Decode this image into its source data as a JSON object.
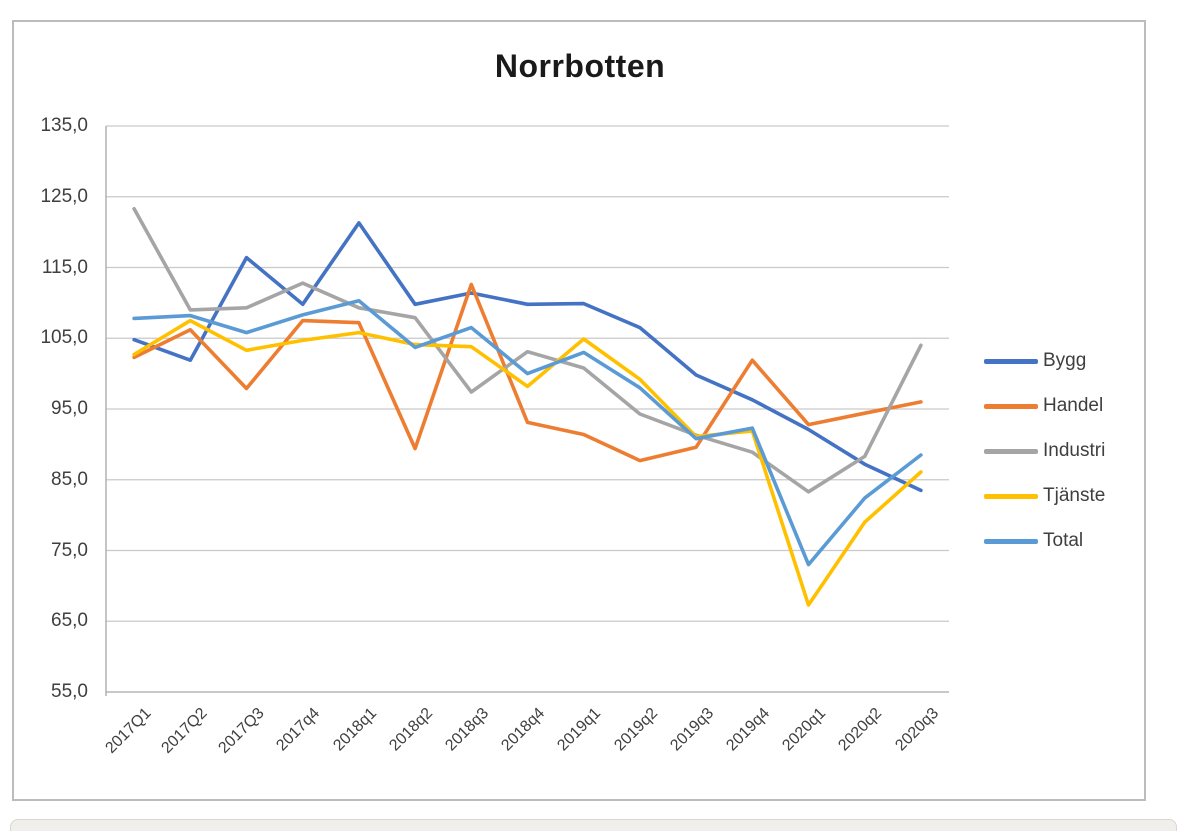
{
  "chart": {
    "title": "Norrbotten"
  },
  "chart_data": {
    "type": "line",
    "title": "Norrbotten",
    "xlabel": "",
    "ylabel": "",
    "ylim": [
      55,
      135
    ],
    "ytick_step": 10,
    "grid": true,
    "legend_position": "right",
    "y_tick_labels": [
      "135,0",
      "125,0",
      "115,0",
      "105,0",
      "95,0",
      "85,0",
      "75,0",
      "65,0",
      "55,0"
    ],
    "y_tick_values": [
      135,
      125,
      115,
      105,
      95,
      85,
      75,
      65,
      55
    ],
    "categories": [
      "2017Q1",
      "2017Q2",
      "2017Q3",
      "2017q4",
      "2018q1",
      "2018q2",
      "2018q3",
      "2018q4",
      "2019q1",
      "2019q2",
      "2019q3",
      "2019q4",
      "2020q1",
      "2020q2",
      "2020q3"
    ],
    "series": [
      {
        "name": "Bygg",
        "color": "#4472C4",
        "values": [
          104.8,
          101.9,
          116.4,
          109.8,
          121.3,
          109.8,
          111.4,
          109.8,
          109.9,
          106.5,
          99.8,
          96.3,
          92.1,
          87.2,
          83.5
        ]
      },
      {
        "name": "Handel",
        "color": "#ED7D31",
        "values": [
          102.3,
          106.2,
          97.9,
          107.5,
          107.2,
          89.4,
          112.6,
          93.1,
          91.4,
          87.7,
          89.6,
          101.9,
          92.8,
          94.4,
          96.0
        ]
      },
      {
        "name": "Industri",
        "color": "#A5A5A5",
        "values": [
          123.3,
          109.0,
          109.3,
          112.8,
          109.3,
          107.9,
          97.4,
          103.1,
          100.8,
          94.3,
          91.3,
          88.9,
          83.3,
          88.3,
          104.0
        ]
      },
      {
        "name": "Tjänste",
        "color": "#FFC000",
        "values": [
          102.7,
          107.5,
          103.3,
          104.7,
          105.8,
          104.1,
          103.8,
          98.2,
          104.9,
          99.2,
          91.1,
          91.9,
          67.3,
          79.0,
          86.1
        ]
      },
      {
        "name": "Total",
        "color": "#5B9BD5",
        "values": [
          107.8,
          108.2,
          105.8,
          108.3,
          110.3,
          103.7,
          106.5,
          100.0,
          103.0,
          98.0,
          90.8,
          92.3,
          73.0,
          82.4,
          88.5
        ]
      }
    ],
    "colors": {
      "gridline": "#c9c9c9",
      "axis": "#a6a6a6",
      "tick_text": "#3f3f3f"
    }
  }
}
